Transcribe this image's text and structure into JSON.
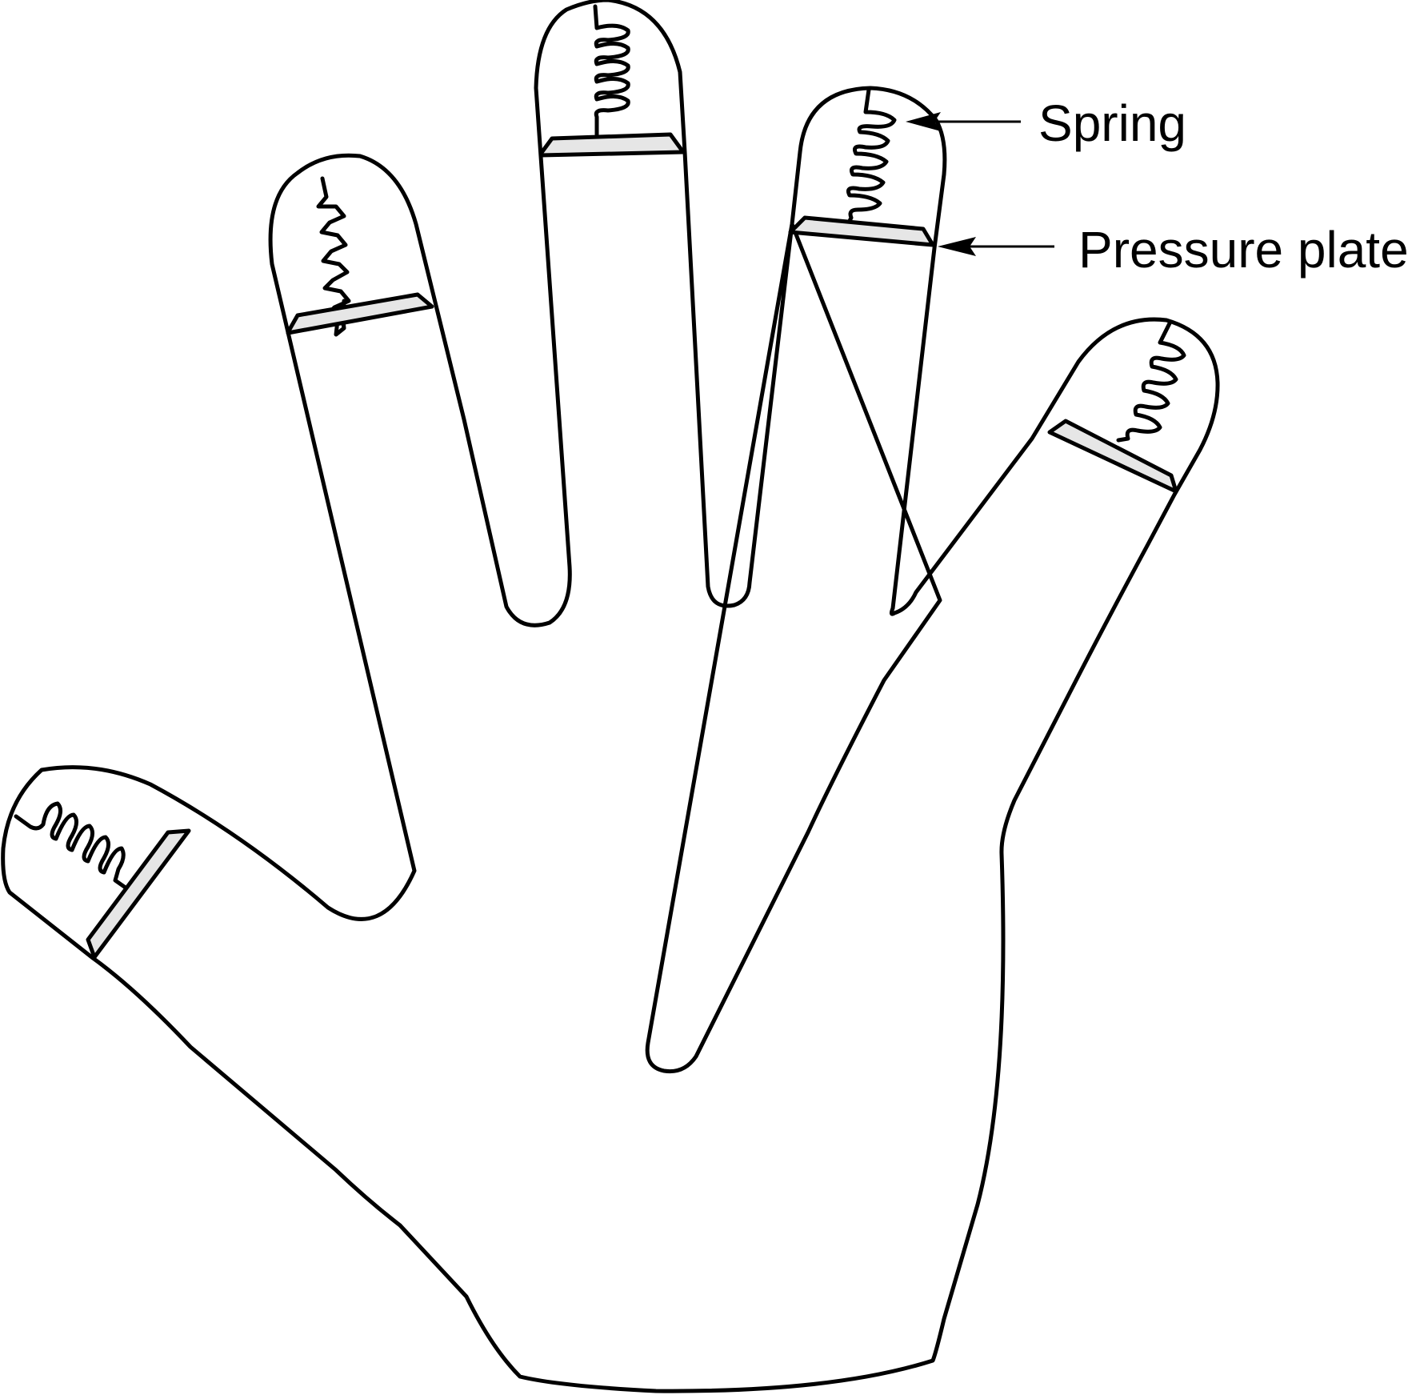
{
  "labels": {
    "spring": "Spring",
    "pressure_plate": "Pressure plate"
  },
  "colors": {
    "outline": "#000000",
    "plate_fill": "#e6e6e6",
    "background": "#ffffff"
  }
}
